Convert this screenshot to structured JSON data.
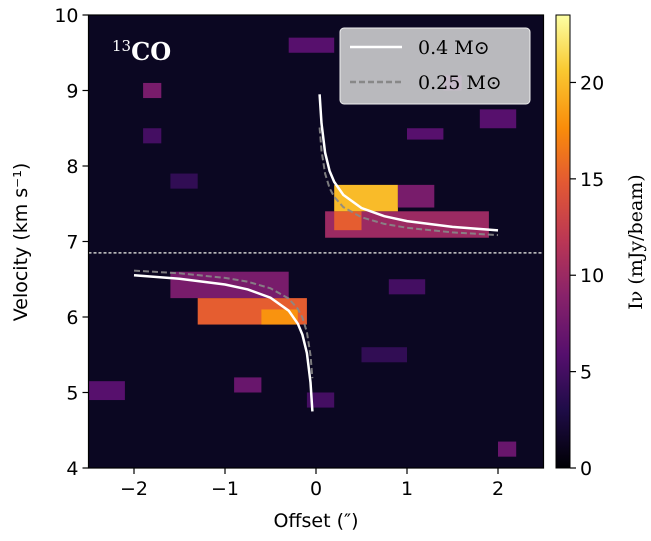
{
  "chart_data": {
    "type": "pv-diagram",
    "tag": {
      "isotope": "13",
      "molecule": "CO"
    },
    "xlabel": "Offset  (″)",
    "ylabel": "Velocity  (km s⁻¹)",
    "colorbar_label": "Iν (mJy/beam)",
    "xlim": [
      -2.5,
      2.5
    ],
    "ylim": [
      4,
      10
    ],
    "clim": [
      0,
      23.5
    ],
    "colormap": "inferno",
    "xticks": [
      {
        "value": -2,
        "label": "−2"
      },
      {
        "value": -1,
        "label": "−1"
      },
      0,
      1,
      2
    ],
    "yticks": [
      4,
      5,
      6,
      7,
      8,
      9,
      10
    ],
    "cticks": [
      0,
      5,
      10,
      15,
      20
    ],
    "systemic_velocity": 6.85,
    "cells": [
      {
        "x": [
          0.1,
          1.9
        ],
        "y": [
          7.05,
          7.4
        ],
        "value": 10
      },
      {
        "x": [
          0.2,
          0.5
        ],
        "y": [
          7.15,
          7.4
        ],
        "value": 15
      },
      {
        "x": [
          0.2,
          0.9
        ],
        "y": [
          7.4,
          7.75
        ],
        "value": 20
      },
      {
        "x": [
          0.9,
          1.3
        ],
        "y": [
          7.45,
          7.75
        ],
        "value": 8
      },
      {
        "x": [
          -1.6,
          -0.3
        ],
        "y": [
          6.25,
          6.6
        ],
        "value": 8
      },
      {
        "x": [
          -1.3,
          -0.1
        ],
        "y": [
          5.9,
          6.25
        ],
        "value": 15
      },
      {
        "x": [
          -0.6,
          -0.2
        ],
        "y": [
          5.9,
          6.1
        ],
        "value": 18
      },
      {
        "x": [
          -1.9,
          -1.7
        ],
        "y": [
          8.9,
          9.1
        ],
        "value": 8
      },
      {
        "x": [
          1.4,
          1.6
        ],
        "y": [
          9.0,
          9.2
        ],
        "value": 6
      },
      {
        "x": [
          -0.3,
          0.2
        ],
        "y": [
          9.5,
          9.7
        ],
        "value": 6
      },
      {
        "x": [
          1.8,
          2.2
        ],
        "y": [
          8.5,
          8.75
        ],
        "value": 6
      },
      {
        "x": [
          -0.9,
          -0.6
        ],
        "y": [
          5.0,
          5.2
        ],
        "value": 7
      },
      {
        "x": [
          -2.5,
          -2.1
        ],
        "y": [
          4.9,
          5.15
        ],
        "value": 6
      },
      {
        "x": [
          2.0,
          2.2
        ],
        "y": [
          4.15,
          4.35
        ],
        "value": 7
      },
      {
        "x": [
          -1.9,
          -1.7
        ],
        "y": [
          8.3,
          8.5
        ],
        "value": 5
      },
      {
        "x": [
          0.8,
          1.2
        ],
        "y": [
          6.3,
          6.5
        ],
        "value": 5
      },
      {
        "x": [
          1.0,
          1.4
        ],
        "y": [
          8.35,
          8.5
        ],
        "value": 6
      },
      {
        "x": [
          -1.6,
          -1.3
        ],
        "y": [
          7.7,
          7.9
        ],
        "value": 4
      },
      {
        "x": [
          0.5,
          1.0
        ],
        "y": [
          5.4,
          5.6
        ],
        "value": 4
      },
      {
        "x": [
          -0.1,
          0.2
        ],
        "y": [
          4.8,
          5.0
        ],
        "value": 5
      }
    ],
    "series": [
      {
        "name": "0.4 M⊙",
        "color": "#ffffff",
        "dash": false,
        "x": [
          -2,
          -1.5,
          -1,
          -0.75,
          -0.5,
          -0.3,
          -0.2,
          -0.15,
          -0.1,
          -0.06,
          -0.04,
          null,
          0.04,
          0.06,
          0.1,
          0.15,
          0.2,
          0.3,
          0.5,
          0.75,
          1,
          1.5,
          2
        ],
        "values": [
          6.553,
          6.507,
          6.43,
          6.365,
          6.256,
          6.083,
          5.911,
          5.766,
          5.522,
          5.135,
          4.75,
          null,
          8.95,
          8.565,
          8.178,
          7.934,
          7.789,
          7.617,
          7.444,
          7.335,
          7.27,
          7.193,
          7.147
        ]
      },
      {
        "name": "0.25 M⊙",
        "color": "#888888",
        "dash": true,
        "x": [
          -2,
          -1.5,
          -1,
          -0.75,
          -0.5,
          -0.3,
          -0.2,
          -0.15,
          -0.1,
          -0.06,
          -0.04,
          null,
          0.04,
          0.06,
          0.1,
          0.15,
          0.2,
          0.3,
          0.5,
          0.75,
          1,
          1.5,
          2
        ],
        "values": [
          6.615,
          6.579,
          6.518,
          6.467,
          6.38,
          6.244,
          6.108,
          5.993,
          5.8,
          5.495,
          5.19,
          null,
          8.51,
          8.205,
          7.9,
          7.707,
          7.592,
          7.456,
          7.32,
          7.233,
          7.182,
          7.121,
          7.085
        ]
      }
    ]
  }
}
